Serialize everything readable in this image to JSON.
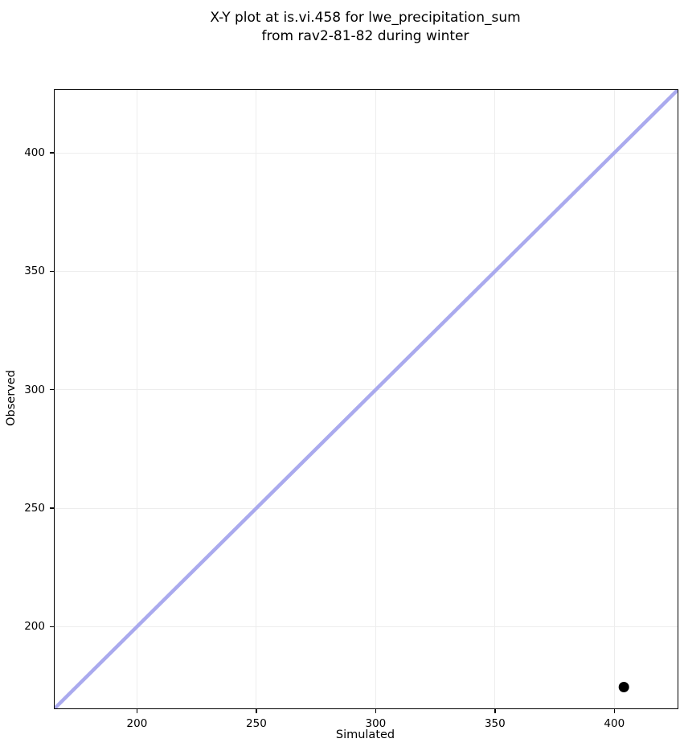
{
  "title": {
    "line1": "X-Y plot at is.vi.458 for lwe_precipitation_sum",
    "line2": "from rav2-81-82 during winter"
  },
  "chart_data": {
    "type": "scatter",
    "title": "X-Y plot at is.vi.458 for lwe_precipitation_sum\nfrom rav2-81-82 during winter",
    "xlabel": "Simulated",
    "ylabel": "Observed",
    "xlim": [
      165.5,
      426.5
    ],
    "ylim": [
      165.5,
      426.5
    ],
    "xticks": [
      200,
      250,
      300,
      350,
      400
    ],
    "yticks": [
      200,
      250,
      300,
      350,
      400
    ],
    "grid": true,
    "legend": "none",
    "series": [
      {
        "name": "identity-line",
        "type": "line",
        "x": [
          165.5,
          426.5
        ],
        "y": [
          165.5,
          426.5
        ],
        "color": "#aaaaee",
        "line_width": 4.5
      },
      {
        "name": "observation-point",
        "type": "scatter",
        "points": [
          {
            "x": 404,
            "y": 174.5
          }
        ],
        "color": "#000000",
        "marker_radius": 6.5
      }
    ],
    "colors": {
      "grid": "#ededed",
      "spine": "#000000",
      "background": "#ffffff",
      "text": "#000000"
    }
  }
}
